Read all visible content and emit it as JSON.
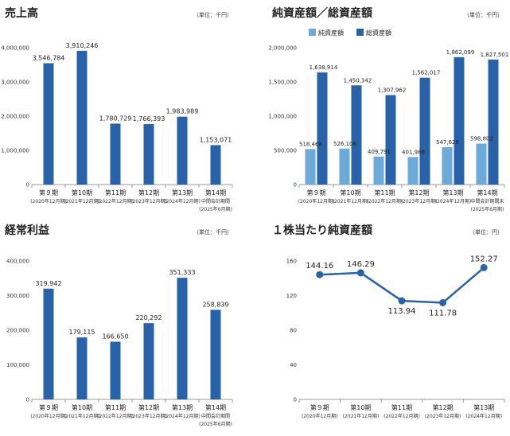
{
  "colors": {
    "dark_blue": "#2862A8",
    "light_blue": "#6BAAD9",
    "axis": "#999999"
  },
  "chart_data": [
    {
      "type": "bar",
      "title": "売上高",
      "unit": "（単位：千円）",
      "categories": [
        "第９期",
        "第10期",
        "第11期",
        "第12期",
        "第13期",
        "第14期"
      ],
      "subcategories": [
        [
          "(2020年12月期)"
        ],
        [
          "(2021年12月期)"
        ],
        [
          "(2022年12月期)"
        ],
        [
          "(2023年12月期)"
        ],
        [
          "(2024年12月期)"
        ],
        [
          "中間会計期間",
          "(2025年6月期)"
        ]
      ],
      "values": [
        3546784,
        3910246,
        1780729,
        1766393,
        1983989,
        1153071
      ],
      "value_labels": [
        "3,546,784",
        "3,910,246",
        "1,780,729",
        "1,766,393",
        "1,983,989",
        "1,153,071"
      ],
      "yticks": [
        0,
        1000000,
        2000000,
        3000000,
        4000000
      ],
      "ytick_labels": [
        "0",
        "1,000,000",
        "2,000,000",
        "3,000,000",
        "4,000,000"
      ],
      "ylim": [
        0,
        4000000
      ]
    },
    {
      "type": "bar",
      "title": "純資産額／総資産額",
      "unit": "（単位：千円）",
      "legend": [
        {
          "name": "純資産額",
          "color": "#6BAAD9"
        },
        {
          "name": "総資産額",
          "color": "#2862A8"
        }
      ],
      "categories": [
        "第９期",
        "第10期",
        "第11期",
        "第12期",
        "第13期",
        "第14期"
      ],
      "subcategories": [
        [
          "(2020年12月期)"
        ],
        [
          "(2021年12月期)"
        ],
        [
          "(2022年12月期)"
        ],
        [
          "(2023年12月期)"
        ],
        [
          "(2024年12月期)"
        ],
        [
          "中間会計期間末",
          "(2025年6月期)"
        ]
      ],
      "series": [
        {
          "name": "純資産額",
          "values": [
            518468,
            526106,
            409791,
            401988,
            547626,
            598802
          ],
          "value_labels": [
            "518,468",
            "526,106",
            "409,791",
            "401,988",
            "547,626",
            "598,802"
          ]
        },
        {
          "name": "総資産額",
          "values": [
            1638914,
            1450342,
            1307962,
            1562017,
            1862099,
            1827501
          ],
          "value_labels": [
            "1,638,914",
            "1,450,342",
            "1,307,962",
            "1,562,017",
            "1,862,099",
            "1,827,501"
          ]
        }
      ],
      "yticks": [
        0,
        500000,
        1000000,
        1500000,
        2000000
      ],
      "ytick_labels": [
        "0",
        "500,000",
        "1,000,000",
        "1,500,000",
        "2,000,000"
      ],
      "ylim": [
        0,
        2000000
      ]
    },
    {
      "type": "bar",
      "title": "経常利益",
      "unit": "（単位：千円）",
      "categories": [
        "第９期",
        "第10期",
        "第11期",
        "第12期",
        "第13期",
        "第14期"
      ],
      "subcategories": [
        [
          "(2020年12月期)"
        ],
        [
          "(2021年12月期)"
        ],
        [
          "(2022年12月期)"
        ],
        [
          "(2023年12月期)"
        ],
        [
          "(2024年12月期)"
        ],
        [
          "中間会計期間",
          "(2025年6月期)"
        ]
      ],
      "values": [
        319942,
        179115,
        166650,
        220292,
        351333,
        258839
      ],
      "value_labels": [
        "319,942",
        "179,115",
        "166,650",
        "220,292",
        "351,333",
        "258,839"
      ],
      "yticks": [
        0,
        100000,
        200000,
        300000,
        400000
      ],
      "ytick_labels": [
        "0",
        "100,000",
        "200,000",
        "300,000",
        "400,000"
      ],
      "ylim": [
        0,
        400000
      ]
    },
    {
      "type": "line",
      "title": "１株当たり純資産額",
      "unit": "（単位：円）",
      "categories": [
        "第９期",
        "第10期",
        "第11期",
        "第12期",
        "第13期"
      ],
      "subcategories": [
        [
          "(2020年12月期)"
        ],
        [
          "(2021年12月期)"
        ],
        [
          "(2022年12月期)"
        ],
        [
          "(2023年12月期)"
        ],
        [
          "(2024年12月期)"
        ]
      ],
      "values": [
        144.16,
        146.29,
        113.94,
        111.78,
        152.27
      ],
      "value_labels": [
        "144.16",
        "146.29",
        "113.94",
        "111.78",
        "152.27"
      ],
      "yticks": [
        0,
        40,
        80,
        120,
        160
      ],
      "ytick_labels": [
        "0",
        "40",
        "80",
        "120",
        "160"
      ],
      "ylim": [
        0,
        160
      ]
    }
  ]
}
